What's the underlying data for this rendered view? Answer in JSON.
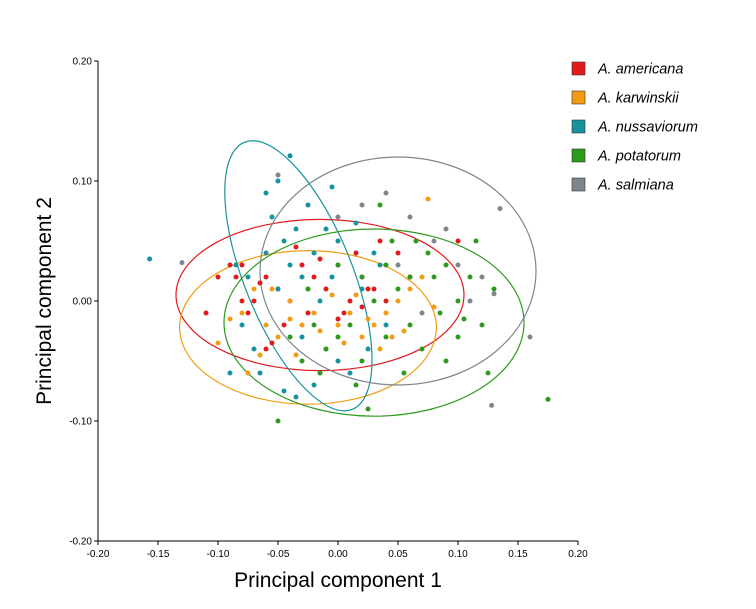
{
  "chart_data": {
    "type": "scatter",
    "xlabel": "Principal component 1",
    "ylabel": "Principal component 2",
    "xlim": [
      -0.2,
      0.2
    ],
    "ylim": [
      -0.2,
      0.2
    ],
    "xticks": [
      "-0.20",
      "-0.15",
      "-0.10",
      "-0.05",
      "0.00",
      "0.05",
      "0.10",
      "0.15",
      "0.20"
    ],
    "yticks": [
      "-0.20",
      "-0.10",
      "0.00",
      "0.10",
      "0.20"
    ],
    "xtick_values": [
      -0.2,
      -0.15,
      -0.1,
      -0.05,
      0,
      0.05,
      0.1,
      0.15,
      0.2
    ],
    "ytick_values": [
      -0.2,
      -0.1,
      0,
      0.1,
      0.2
    ],
    "grid": false,
    "legend_position": "top-right",
    "series": [
      {
        "name": "A. americana",
        "color": "#e31a1c",
        "ellipse": {
          "cx": -0.015,
          "cy": 0.005,
          "rx": 0.12,
          "ry": 0.063
        },
        "points": [
          [
            -0.09,
            0.03
          ],
          [
            -0.085,
            0.02
          ],
          [
            -0.08,
            0.03
          ],
          [
            -0.07,
            0.0
          ],
          [
            -0.06,
            0.02
          ],
          [
            -0.05,
            0.01
          ],
          [
            -0.04,
            0.0
          ],
          [
            -0.03,
            0.03
          ],
          [
            -0.02,
            0.02
          ],
          [
            -0.01,
            0.01
          ],
          [
            0.0,
            0.03
          ],
          [
            0.01,
            0.0
          ],
          [
            0.02,
            0.02
          ],
          [
            0.03,
            0.01
          ],
          [
            -0.045,
            -0.02
          ],
          [
            -0.025,
            -0.01
          ],
          [
            0.005,
            -0.01
          ],
          [
            0.015,
            0.04
          ],
          [
            0.035,
            0.05
          ],
          [
            0.05,
            0.04
          ],
          [
            0.06,
            0.02
          ],
          [
            0.1,
            0.05
          ],
          [
            -0.1,
            0.02
          ],
          [
            -0.075,
            -0.01
          ],
          [
            -0.065,
            0.015
          ],
          [
            -0.015,
            0.035
          ],
          [
            0.0,
            -0.015
          ],
          [
            0.02,
            -0.005
          ],
          [
            0.04,
            0.0
          ],
          [
            -0.11,
            -0.01
          ],
          [
            -0.055,
            -0.035
          ],
          [
            -0.035,
            0.045
          ],
          [
            -0.06,
            -0.04
          ],
          [
            -0.08,
            0.0
          ],
          [
            0.025,
            0.01
          ]
        ]
      },
      {
        "name": "A. karwinskii",
        "color": "#f39c12",
        "ellipse": {
          "cx": -0.025,
          "cy": -0.022,
          "rx": 0.107,
          "ry": 0.064
        },
        "points": [
          [
            -0.1,
            -0.035
          ],
          [
            -0.08,
            -0.01
          ],
          [
            -0.07,
            0.01
          ],
          [
            -0.06,
            -0.02
          ],
          [
            -0.05,
            -0.03
          ],
          [
            -0.04,
            0.0
          ],
          [
            -0.03,
            -0.02
          ],
          [
            -0.02,
            -0.01
          ],
          [
            -0.01,
            -0.04
          ],
          [
            0.0,
            -0.02
          ],
          [
            0.01,
            -0.01
          ],
          [
            0.02,
            -0.03
          ],
          [
            0.03,
            -0.02
          ],
          [
            0.04,
            -0.01
          ],
          [
            0.05,
            0.0
          ],
          [
            0.06,
            0.01
          ],
          [
            0.075,
            0.085
          ],
          [
            -0.09,
            -0.015
          ],
          [
            -0.055,
            0.01
          ],
          [
            -0.035,
            -0.045
          ],
          [
            -0.015,
            -0.025
          ],
          [
            0.005,
            -0.035
          ],
          [
            0.025,
            -0.015
          ],
          [
            0.035,
            -0.04
          ],
          [
            0.055,
            -0.025
          ],
          [
            0.07,
            0.02
          ],
          [
            -0.065,
            -0.045
          ],
          [
            -0.005,
            0.005
          ],
          [
            0.015,
            0.005
          ],
          [
            -0.04,
            -0.015
          ],
          [
            0.045,
            -0.03
          ],
          [
            -0.025,
            0.01
          ],
          [
            0.08,
            -0.005
          ],
          [
            -0.075,
            -0.06
          ]
        ]
      },
      {
        "name": "A. nussaviorum",
        "color": "#17939e",
        "ellipse": {
          "cx": -0.033,
          "cy": 0.021,
          "rx": 0.045,
          "ry": 0.12,
          "rotation": -22
        },
        "points": [
          [
            -0.157,
            0.035
          ],
          [
            -0.09,
            -0.06
          ],
          [
            -0.085,
            0.03
          ],
          [
            -0.07,
            -0.04
          ],
          [
            -0.06,
            0.09
          ],
          [
            -0.055,
            0.07
          ],
          [
            -0.05,
            0.1
          ],
          [
            -0.045,
            0.05
          ],
          [
            -0.04,
            0.03
          ],
          [
            -0.035,
            0.06
          ],
          [
            -0.03,
            0.02
          ],
          [
            -0.025,
            0.08
          ],
          [
            -0.02,
            0.04
          ],
          [
            -0.015,
            0.0
          ],
          [
            -0.01,
            0.06
          ],
          [
            -0.005,
            0.02
          ],
          [
            0.0,
            0.05
          ],
          [
            0.01,
            -0.06
          ],
          [
            0.02,
            0.01
          ],
          [
            0.03,
            0.04
          ],
          [
            -0.04,
            0.121
          ],
          [
            -0.075,
            0.02
          ],
          [
            -0.065,
            -0.06
          ],
          [
            -0.035,
            -0.08
          ],
          [
            -0.02,
            -0.07
          ],
          [
            0.0,
            -0.05
          ],
          [
            0.025,
            -0.04
          ],
          [
            0.035,
            0.03
          ],
          [
            0.04,
            -0.02
          ],
          [
            -0.05,
            0.01
          ],
          [
            -0.005,
            0.095
          ],
          [
            -0.03,
            -0.03
          ],
          [
            -0.045,
            -0.075
          ],
          [
            -0.06,
            0.04
          ],
          [
            0.015,
            0.065
          ],
          [
            -0.08,
            -0.02
          ]
        ]
      },
      {
        "name": "A. potatorum",
        "color": "#2e9a1d",
        "ellipse": {
          "cx": 0.03,
          "cy": -0.018,
          "rx": 0.125,
          "ry": 0.078
        },
        "points": [
          [
            -0.05,
            -0.1
          ],
          [
            -0.04,
            -0.03
          ],
          [
            -0.03,
            -0.05
          ],
          [
            -0.02,
            -0.02
          ],
          [
            -0.01,
            -0.04
          ],
          [
            0.0,
            -0.03
          ],
          [
            0.01,
            -0.02
          ],
          [
            0.02,
            -0.05
          ],
          [
            0.03,
            0.0
          ],
          [
            0.04,
            -0.03
          ],
          [
            0.05,
            0.01
          ],
          [
            0.06,
            0.02
          ],
          [
            0.07,
            -0.04
          ],
          [
            0.08,
            0.02
          ],
          [
            0.09,
            0.03
          ],
          [
            0.1,
            0.0
          ],
          [
            0.11,
            0.02
          ],
          [
            0.12,
            -0.02
          ],
          [
            0.13,
            0.01
          ],
          [
            0.175,
            -0.082
          ],
          [
            0.025,
            -0.09
          ],
          [
            0.035,
            0.08
          ],
          [
            0.045,
            0.05
          ],
          [
            0.065,
            0.05
          ],
          [
            0.085,
            -0.01
          ],
          [
            0.1,
            -0.03
          ],
          [
            0.115,
            0.05
          ],
          [
            0.125,
            -0.06
          ],
          [
            -0.015,
            -0.06
          ],
          [
            0.015,
            -0.07
          ],
          [
            0.055,
            -0.06
          ],
          [
            0.075,
            0.04
          ],
          [
            0.09,
            -0.05
          ],
          [
            0.105,
            -0.015
          ],
          [
            0.0,
            0.03
          ],
          [
            -0.025,
            0.01
          ],
          [
            0.02,
            0.02
          ],
          [
            0.06,
            -0.02
          ],
          [
            0.04,
            0.03
          ]
        ]
      },
      {
        "name": "A. salmiana",
        "color": "#7f878e",
        "ellipse": {
          "cx": 0.05,
          "cy": 0.025,
          "rx": 0.115,
          "ry": 0.095
        },
        "points": [
          [
            -0.13,
            0.032
          ],
          [
            -0.05,
            0.105
          ],
          [
            0.0,
            0.07
          ],
          [
            0.02,
            0.08
          ],
          [
            0.04,
            0.09
          ],
          [
            0.06,
            0.07
          ],
          [
            0.08,
            0.05
          ],
          [
            0.1,
            0.03
          ],
          [
            0.11,
            0.0
          ],
          [
            0.12,
            0.02
          ],
          [
            0.135,
            0.077
          ],
          [
            0.13,
            0.006
          ],
          [
            0.128,
            -0.087
          ],
          [
            0.16,
            -0.03
          ],
          [
            0.09,
            0.06
          ],
          [
            0.07,
            -0.01
          ],
          [
            0.05,
            0.03
          ]
        ]
      }
    ]
  }
}
